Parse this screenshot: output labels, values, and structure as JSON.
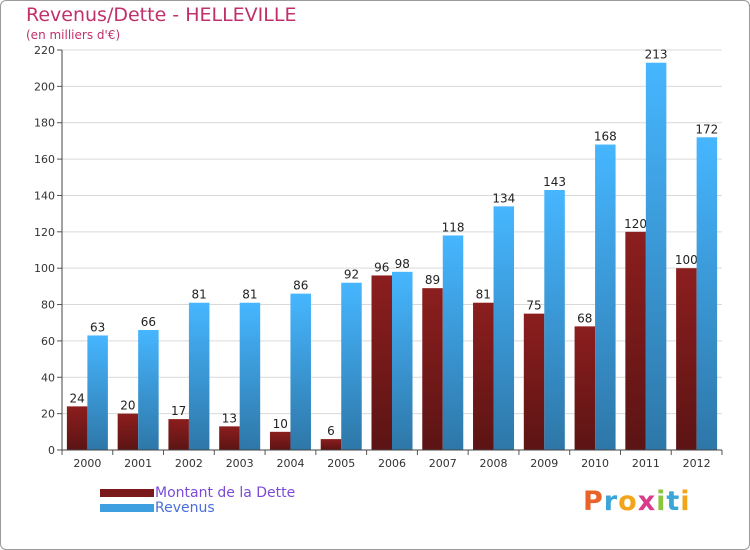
{
  "chart_data": {
    "type": "bar",
    "title": "Revenus/Dette - HELLEVILLE",
    "subtitle": "(en milliers d'€)",
    "categories": [
      "2000",
      "2001",
      "2002",
      "2003",
      "2004",
      "2005",
      "2006",
      "2007",
      "2008",
      "2009",
      "2010",
      "2011",
      "2012"
    ],
    "series": [
      {
        "name": "Montant de la Dette",
        "color": "#7a1a1a",
        "values": [
          24,
          20,
          17,
          13,
          10,
          6,
          96,
          89,
          81,
          75,
          68,
          120,
          100
        ]
      },
      {
        "name": "Revenus",
        "color": "#3d9ee0",
        "values": [
          63,
          66,
          81,
          81,
          86,
          92,
          98,
          118,
          134,
          143,
          168,
          213,
          172
        ]
      }
    ],
    "ylim": [
      0,
      220
    ],
    "yticks": [
      0,
      20,
      40,
      60,
      80,
      100,
      120,
      140,
      160,
      180,
      200,
      220
    ],
    "grid": true,
    "legend": "bottom-left"
  },
  "logo": {
    "letters": [
      "P",
      "r",
      "o",
      "x",
      "i",
      "t",
      "i"
    ],
    "colors": [
      "#e8622a",
      "#3aa6d8",
      "#f2a51a",
      "#d83c8a",
      "#8cc63e",
      "#3aa6d8",
      "#f2a51a"
    ]
  }
}
